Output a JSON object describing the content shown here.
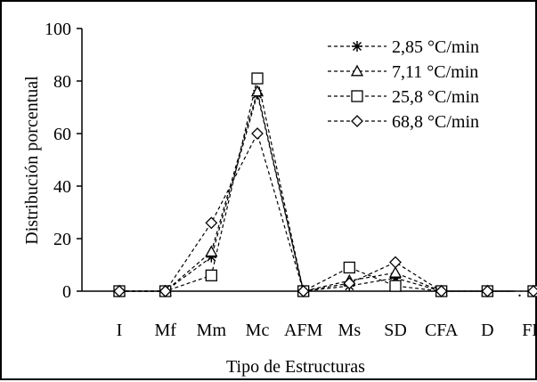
{
  "chart_data": {
    "type": "line",
    "title": "",
    "xlabel": "Tipo de Estructuras",
    "ylabel": "Distribución porcentual",
    "categories": [
      "I",
      "Mf",
      "Mm",
      "Mc",
      "AFM",
      "Ms",
      "SD",
      "CFA",
      "D",
      "FD"
    ],
    "ylim": [
      0,
      100
    ],
    "yticks": [
      0,
      20,
      40,
      60,
      80,
      100
    ],
    "grid": false,
    "legend_position": "top-right",
    "series": [
      {
        "name": "2,85 °C/min",
        "marker": "asterisk",
        "values": [
          0,
          0,
          13,
          75,
          0,
          2,
          5,
          0,
          0,
          0
        ]
      },
      {
        "name": "7,11 °C/min",
        "marker": "triangle",
        "values": [
          0,
          0,
          15,
          76,
          0,
          4,
          7,
          0,
          0,
          0
        ]
      },
      {
        "name": "25,8 °C/min",
        "marker": "square",
        "values": [
          0,
          0,
          6,
          81,
          0,
          9,
          2,
          0,
          0,
          0
        ]
      },
      {
        "name": "68,8 °C/min",
        "marker": "diamond",
        "values": [
          0,
          0,
          26,
          60,
          0,
          3,
          11,
          0,
          0,
          0
        ]
      }
    ],
    "colors": {
      "line": "#000000",
      "marker_fill": "#ffffff",
      "background": "#ffffff"
    }
  }
}
